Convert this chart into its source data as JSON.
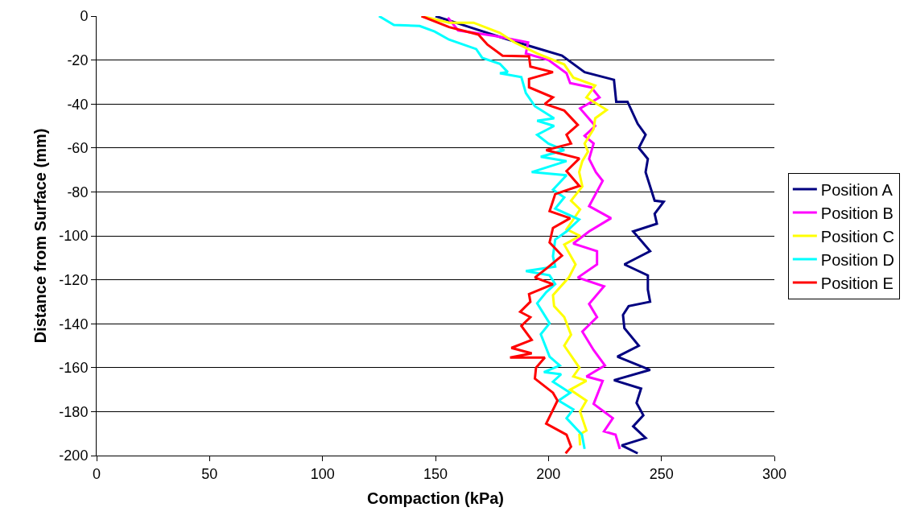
{
  "chart_data": {
    "type": "line",
    "xlabel": "Compaction (kPa)",
    "ylabel": "Distance from Surface (mm)",
    "xlim": [
      0,
      300
    ],
    "ylim": [
      -200,
      0
    ],
    "xticks": [
      0,
      50,
      100,
      150,
      200,
      250,
      300
    ],
    "yticks": [
      -200,
      -180,
      -160,
      -140,
      -120,
      -100,
      -80,
      -60,
      -40,
      -20,
      0
    ],
    "grid": "y",
    "legend": "right",
    "marker": "none",
    "line_style": "solid",
    "series": [
      {
        "name": "Position A",
        "color": "#000080",
        "x": [
          150,
          165,
          180,
          193,
          206,
          216,
          229,
          230,
          235,
          239.5,
          243,
          240,
          244,
          243,
          247,
          251,
          247,
          248,
          237.5,
          245,
          233.6,
          244,
          244,
          245,
          235.5,
          233,
          233.6,
          240,
          230.5,
          245,
          229,
          241,
          239,
          242,
          237.5,
          243,
          232.4,
          239.5
        ],
        "values": [
          0,
          -5,
          -10,
          -14,
          -18,
          -25.5,
          -29,
          -39,
          -39,
          -49,
          -54,
          -60,
          -65,
          -71,
          -84,
          -84.5,
          -90,
          -94.5,
          -98,
          -107,
          -113,
          -118,
          -124.5,
          -130,
          -132,
          -136,
          -142,
          -150,
          -155,
          -161,
          -165.7,
          -169.5,
          -176,
          -181.7,
          -186.7,
          -192,
          -195.4,
          -199
        ]
      },
      {
        "name": "Position B",
        "color": "#ff00ff",
        "x": [
          155.5,
          160,
          176,
          191,
          190,
          200,
          208,
          209.6,
          219,
          222.6,
          214,
          220.7,
          216,
          220,
          218,
          221,
          224,
          218,
          227.7,
          218,
          211,
          221.5,
          221.5,
          213,
          224.6,
          218,
          221.5,
          215,
          220,
          225,
          216.8,
          224,
          220,
          228.5,
          224.6,
          229.7,
          231.6
        ],
        "values": [
          -0.7,
          -6.5,
          -9,
          -12,
          -17,
          -20,
          -26,
          -30.5,
          -32.5,
          -37,
          -42,
          -50,
          -54.5,
          -58,
          -65,
          -71,
          -75,
          -86.5,
          -92,
          -98,
          -103.5,
          -107,
          -113,
          -119,
          -123,
          -131,
          -137,
          -143.6,
          -152,
          -159,
          -164,
          -166,
          -176.5,
          -183,
          -189,
          -190.5,
          -197
        ]
      },
      {
        "name": "Position C",
        "color": "#ffff00",
        "x": [
          143.8,
          156,
          166.8,
          178.5,
          185,
          195,
          207,
          211,
          220.7,
          216.8,
          225.8,
          220.7,
          220,
          216,
          217.5,
          215,
          213.6,
          215,
          210,
          214,
          208,
          214,
          207,
          212,
          209,
          202,
          202.5,
          207,
          210,
          207,
          213.7,
          211,
          216.8,
          209.6,
          216.8,
          214,
          216.8,
          213.7,
          214
        ],
        "values": [
          0,
          -3,
          -3,
          -7.6,
          -12,
          -17,
          -22,
          -28,
          -31.6,
          -37,
          -42.7,
          -46.5,
          -51.4,
          -58,
          -61.7,
          -66,
          -71,
          -77.5,
          -84,
          -88,
          -97,
          -100,
          -104,
          -113,
          -119,
          -127,
          -132,
          -137,
          -145,
          -150,
          -160,
          -164,
          -166,
          -170,
          -175,
          -180,
          -188.6,
          -190.5,
          -195.4
        ]
      },
      {
        "name": "Position D",
        "color": "#00ffff",
        "x": [
          125,
          131.6,
          143,
          149.6,
          156,
          168,
          170.7,
          178.5,
          182,
          178.5,
          188,
          190,
          194,
          202.5,
          195,
          202.5,
          195,
          200,
          207,
          196.6,
          208,
          192.6,
          208,
          202,
          207,
          203,
          213.6,
          208,
          203,
          202,
          203,
          190,
          200.5,
          203,
          199,
          195,
          200.5,
          196.6,
          200.5,
          205,
          198,
          205.6,
          202,
          209.6,
          204.5,
          211,
          208,
          214.8,
          216
        ],
        "values": [
          0,
          -4,
          -4.5,
          -7,
          -10.7,
          -15,
          -19,
          -21.7,
          -25.5,
          -26,
          -27.8,
          -35,
          -41,
          -46.5,
          -47.6,
          -50,
          -54,
          -58,
          -61,
          -64,
          -66,
          -71,
          -72.4,
          -79,
          -82.5,
          -87.6,
          -92.6,
          -98,
          -101.7,
          -109.3,
          -114,
          -116,
          -118,
          -122,
          -125.7,
          -130.7,
          -139.8,
          -144.8,
          -155,
          -159,
          -162,
          -163,
          -166.4,
          -171.4,
          -175,
          -179,
          -183,
          -190.5,
          -197
        ]
      },
      {
        "name": "Position E",
        "color": "#ff0000",
        "x": [
          143.8,
          156,
          169,
          173,
          179.7,
          191.4,
          192,
          202,
          191.4,
          191.4,
          202,
          198.4,
          207,
          213,
          208,
          210,
          199,
          213.7,
          208,
          213.7,
          203,
          200.5,
          209.6,
          202,
          200.5,
          206,
          199,
          194,
          202,
          191.4,
          192,
          187.5,
          192,
          188,
          192.6,
          183.6,
          192.6,
          183,
          198.4,
          194.5,
          194,
          202,
          204,
          199,
          208,
          210,
          207.6
        ],
        "values": [
          0,
          -5,
          -8.4,
          -13,
          -18,
          -18.3,
          -23,
          -25.5,
          -28.6,
          -32.4,
          -37,
          -40,
          -43,
          -49.5,
          -54,
          -58,
          -61,
          -64.8,
          -70.5,
          -77.3,
          -81,
          -88.8,
          -92,
          -96.4,
          -103,
          -109,
          -115,
          -119,
          -122,
          -126.5,
          -130,
          -134.6,
          -137,
          -141,
          -147.4,
          -151,
          -153.5,
          -155.4,
          -155.4,
          -160,
          -165,
          -171.4,
          -175,
          -185.5,
          -190.5,
          -196,
          -199
        ]
      }
    ]
  }
}
